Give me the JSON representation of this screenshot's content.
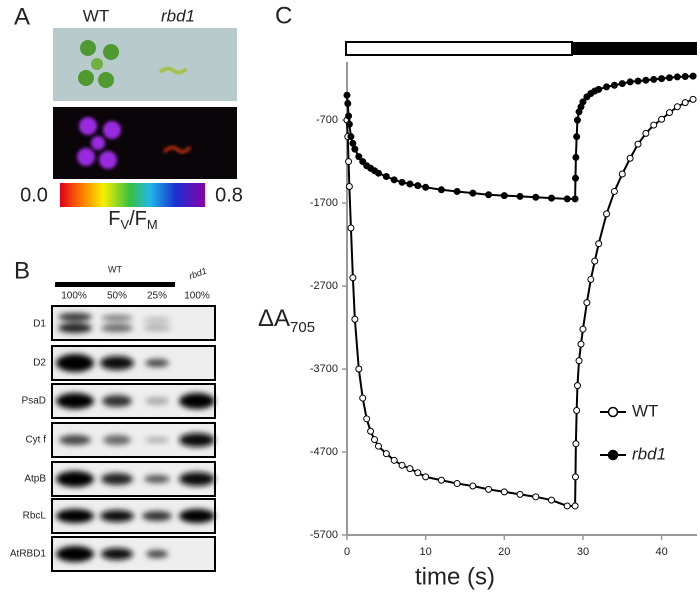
{
  "panel_a": {
    "label": "A",
    "genotypes": [
      "WT",
      "rbd1"
    ],
    "colorbar": {
      "ticks": [
        {
          "value": 0,
          "label": "0.0"
        },
        {
          "value": 0.8,
          "label": "0.8"
        }
      ],
      "title": {
        "text": "F",
        "sub1": "V",
        "mid": "/F",
        "sub2": "M"
      }
    }
  },
  "panel_b": {
    "label": "B",
    "groups": [
      "WT",
      "rbd1"
    ],
    "lanes": [
      "100%",
      "50%",
      "25%",
      "100%"
    ],
    "rows": [
      "D1",
      "D2",
      "PsaD",
      "Cyt f",
      "AtpB",
      "RbcL",
      "AtRBD1"
    ]
  },
  "chart_data": {
    "type": "line",
    "panel_label": "C",
    "xlabel": "time (s)",
    "ylabel": {
      "text": "ΔA",
      "subscript": "705"
    },
    "x": [
      0,
      0.1,
      0.2,
      0.3,
      0.5,
      0.75,
      1,
      1.5,
      2,
      2.5,
      3,
      3.5,
      4,
      5,
      6,
      7,
      8,
      9,
      10,
      12,
      14,
      16,
      18,
      20,
      22,
      24,
      26,
      28,
      29,
      29.05,
      29.1,
      29.2,
      29.3,
      29.5,
      29.75,
      30,
      30.5,
      31,
      31.5,
      32,
      33,
      34,
      35,
      36,
      37,
      38,
      39,
      40,
      41,
      42,
      43,
      44
    ],
    "series": [
      {
        "name": "WT",
        "color": "#000000",
        "marker_fill": "#ffffff",
        "italic": false,
        "values": [
          -700,
          -900,
          -1200,
          -1500,
          -2000,
          -2600,
          -3100,
          -3700,
          -4050,
          -4300,
          -4450,
          -4550,
          -4630,
          -4720,
          -4800,
          -4860,
          -4900,
          -4950,
          -5000,
          -5040,
          -5080,
          -5110,
          -5150,
          -5180,
          -5210,
          -5240,
          -5280,
          -5350,
          -5350,
          -5000,
          -4600,
          -4200,
          -3900,
          -3600,
          -3400,
          -3220,
          -2900,
          -2620,
          -2400,
          -2190,
          -1830,
          -1560,
          -1350,
          -1160,
          -990,
          -860,
          -760,
          -690,
          -610,
          -540,
          -490,
          -450
        ]
      },
      {
        "name": "rbd1",
        "color": "#000000",
        "marker_fill": "#000000",
        "italic": true,
        "values": [
          -400,
          -500,
          -650,
          -750,
          -900,
          -980,
          -1050,
          -1140,
          -1200,
          -1250,
          -1280,
          -1310,
          -1340,
          -1380,
          -1420,
          -1450,
          -1470,
          -1490,
          -1510,
          -1540,
          -1560,
          -1580,
          -1600,
          -1610,
          -1620,
          -1630,
          -1640,
          -1650,
          -1650,
          -1400,
          -1150,
          -900,
          -700,
          -600,
          -540,
          -480,
          -420,
          -380,
          -350,
          -330,
          -300,
          -280,
          -260,
          -240,
          -230,
          -220,
          -210,
          -200,
          -190,
          -180,
          -175,
          -170
        ]
      }
    ],
    "xlim": [
      0,
      44.5
    ],
    "xticks": [
      0,
      10,
      20,
      30,
      40
    ],
    "ylim": [
      -5700,
      0
    ],
    "yticks": [
      -700,
      -1700,
      -2700,
      -3700,
      -4700,
      -5700
    ],
    "legend": "lower right"
  }
}
